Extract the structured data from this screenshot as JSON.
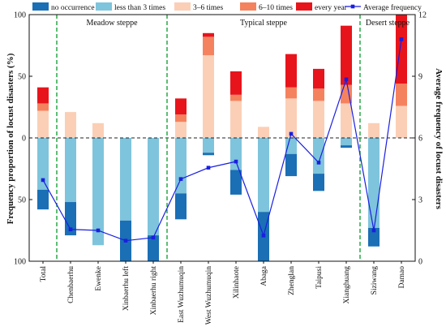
{
  "chart_data": {
    "type": "bar",
    "categories": [
      "Total",
      "Chenbaerhu",
      "Ewenke",
      "Xinbaerhu left",
      "Xinbaerhu right",
      "East Wuzhumuqin",
      "West Wuzhumuqin",
      "Xilinhaote",
      "Abaga",
      "Zhenglan",
      "Taipusi",
      "Xianghuang",
      "Siziwang",
      "Damao"
    ],
    "upper_series": [
      {
        "name": "3–6 times",
        "color": "#fbcfb6",
        "values": [
          22,
          21,
          12,
          0,
          0,
          13,
          67,
          30,
          9,
          32,
          30,
          28,
          12,
          26
        ]
      },
      {
        "name": "6–10 times",
        "color": "#f5825e",
        "values": [
          6,
          0,
          0,
          0,
          0,
          6,
          15,
          5,
          0,
          9,
          10,
          15,
          0,
          18
        ]
      },
      {
        "name": "every year",
        "color": "#e8141b",
        "values": [
          13,
          0,
          0,
          0,
          0,
          13,
          3,
          19,
          0,
          27,
          16,
          48,
          0,
          56
        ]
      }
    ],
    "lower_series": [
      {
        "name": "less than 3 times",
        "color": "#7ec4dc",
        "values": [
          42,
          52,
          87,
          67,
          79,
          45,
          12,
          26,
          60,
          13,
          29,
          6,
          73,
          0
        ]
      },
      {
        "name": "no occurrence",
        "color": "#1a6fb5",
        "values": [
          16,
          27,
          0,
          33,
          21,
          21,
          2,
          20,
          40,
          18,
          14,
          2,
          15,
          0
        ]
      }
    ],
    "line_series": {
      "name": "Average frequency",
      "color": "#1a1fe0",
      "values": [
        3.95,
        1.55,
        1.5,
        1.0,
        1.15,
        4.0,
        4.55,
        4.85,
        1.25,
        6.2,
        4.8,
        8.85,
        1.5,
        10.8
      ]
    },
    "legend": [
      {
        "label": "no occurrence",
        "color": "#1a6fb5",
        "kind": "box"
      },
      {
        "label": "less than 3 times",
        "color": "#7ec4dc",
        "kind": "box"
      },
      {
        "label": "3–6 times",
        "color": "#fbcfb6",
        "kind": "box"
      },
      {
        "label": "6–10 times",
        "color": "#f5825e",
        "kind": "box"
      },
      {
        "label": "every year",
        "color": "#e8141b",
        "kind": "box"
      },
      {
        "label": "Average frequency",
        "color": "#1a1fe0",
        "kind": "line"
      }
    ],
    "legend_position": "top",
    "regions": [
      {
        "label": "Meadow steppe",
        "from": 1,
        "to": 4
      },
      {
        "label": "Typical steppe",
        "from": 5,
        "to": 11
      },
      {
        "label": "Desert steppe",
        "from": 12,
        "to": 13
      }
    ],
    "region_divider_color": "#1aa33a",
    "ylabel_left": "Frequency proportion of locust disasters (%)",
    "ylabel_right": "Average frequency of locust disasters",
    "yticks_left": [
      "100",
      "50",
      "0",
      "50",
      "100"
    ],
    "yticks_right": [
      "0",
      "3",
      "6",
      "9",
      "12"
    ],
    "ylim_left": [
      -100,
      100
    ],
    "ylim_right": [
      0,
      12
    ],
    "grid": false
  }
}
